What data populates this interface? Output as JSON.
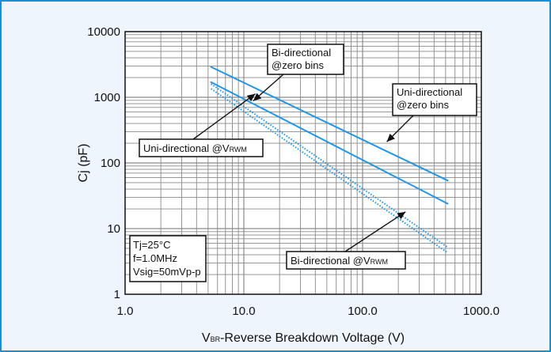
{
  "chart_data": {
    "type": "line",
    "xlabel_prefix": "V",
    "xlabel_sub": "BR",
    "xlabel_rest": "-Reverse Breakdown Voltage (V)",
    "ylabel": "Cj (pF)",
    "x_scale": "log",
    "y_scale": "log",
    "xlim": [
      1,
      1000
    ],
    "ylim": [
      1,
      10000
    ],
    "grid": true,
    "x_ticks": [
      1,
      10,
      100,
      1000
    ],
    "x_tick_labels": [
      "1.0",
      "10.0",
      "100.0",
      "1000.0"
    ],
    "y_ticks": [
      1,
      10,
      100,
      1000,
      10000
    ],
    "y_tick_labels": [
      "1",
      "10",
      "100",
      "1000",
      "10000"
    ],
    "colors": {
      "line": "#2196e8",
      "frame": "#1a8fd6",
      "background": "#eef5fc",
      "grid": "#8a8a8a"
    },
    "series": [
      {
        "style": "solid",
        "x": [
          5.3,
          520
        ],
        "y": [
          2900,
          54
        ]
      },
      {
        "style": "solid",
        "x": [
          5.3,
          520
        ],
        "y": [
          1700,
          24
        ]
      },
      {
        "style": "dotted",
        "x": [
          5.3,
          520
        ],
        "y": [
          1600,
          5.2
        ]
      },
      {
        "style": "dotted",
        "x": [
          5.3,
          520
        ],
        "y": [
          1350,
          4.3
        ]
      }
    ],
    "annotations": [
      {
        "lines": [
          "Bi-directional",
          "@zero bins"
        ],
        "arrow_to": [
          12,
          880
        ]
      },
      {
        "lines": [
          "Uni-directional",
          "@zero bins"
        ],
        "arrow_to": [
          160,
          210
        ]
      },
      {
        "prefix": "Uni-directional @V",
        "sub": "RWM",
        "arrow_to": [
          12.5,
          1130
        ]
      },
      {
        "prefix": "Bi-directional @V",
        "sub": "RWM",
        "arrow_to": [
          230,
          18
        ]
      }
    ],
    "conditions": [
      "Tj=25°C",
      "f=1.0MHz",
      "Vsig=50mVp-p"
    ]
  }
}
